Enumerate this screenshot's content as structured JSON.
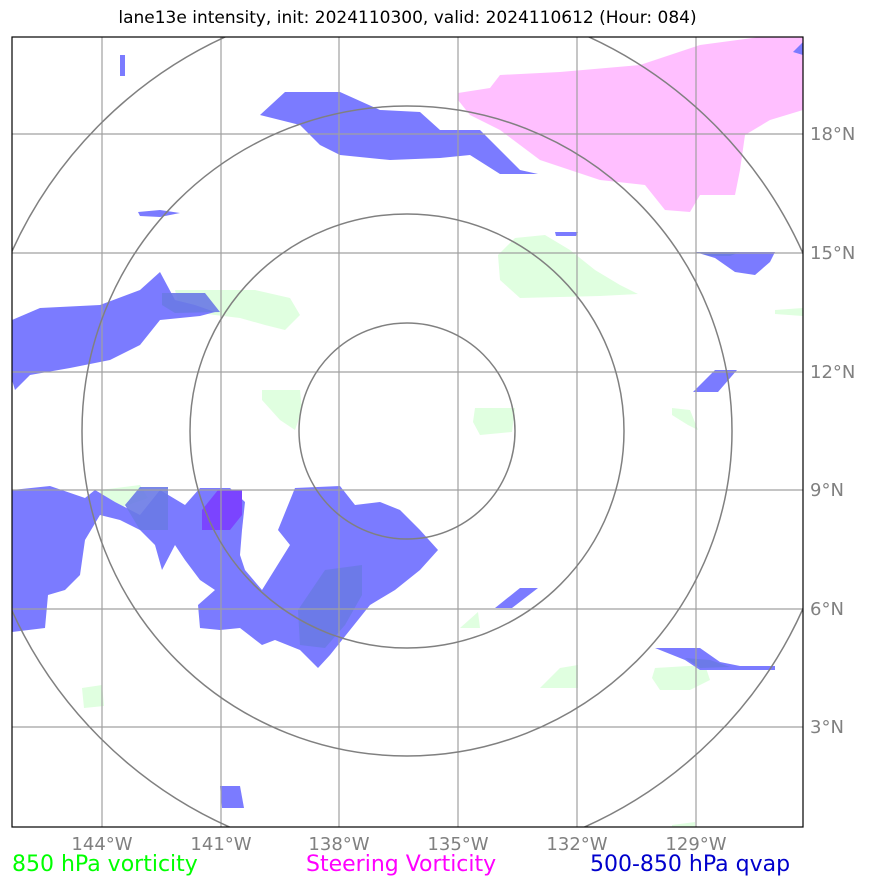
{
  "title": "lane13e intensity, init: 2024110300, valid: 2024110612 (Hour: 084)",
  "lat_labels": [
    "18°N",
    "15°N",
    "12°N",
    "9°N",
    "6°N",
    "3°N"
  ],
  "lon_labels": [
    "144°W",
    "141°W",
    "138°W",
    "135°W",
    "132°W",
    "129°W"
  ],
  "legend": {
    "vorticity_850": "850 hPa vorticity",
    "steering_vorticity": "Steering Vorticity",
    "qvap": "500-850 hPa qvap"
  },
  "colors": {
    "vorticity_850": "#00ff00",
    "steering_vorticity": "#ff00ff",
    "qvap": "#0000cc",
    "qvap_fill": "#7b7bff",
    "steering_fill": "#ffbfff",
    "vorticity_fill": "#e0ffe0",
    "grid": "#a0a0a0",
    "rings": "#808080"
  }
}
